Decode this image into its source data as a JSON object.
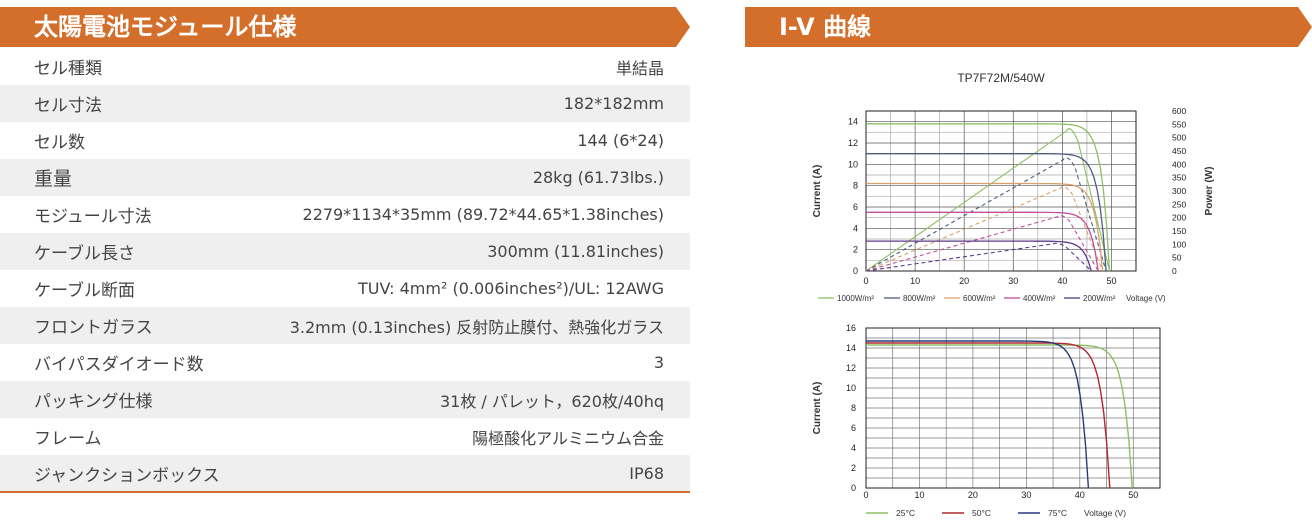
{
  "spec": {
    "title": "太陽電池モジュール仕様",
    "rows": [
      {
        "label": "セル種類",
        "value": "単結晶"
      },
      {
        "label": "セル寸法",
        "value": "182*182mm"
      },
      {
        "label": "セル数",
        "value": "144 (6*24)"
      },
      {
        "label": "重量",
        "value": "28kg (61.73lbs.)"
      },
      {
        "label": "モジュール寸法",
        "value": "2279*1134*35mm (89.72*44.65*1.38inches)"
      },
      {
        "label": "ケーブル長さ",
        "value": "300mm (11.81inches)"
      },
      {
        "label": "ケーブル断面",
        "value": "TUV: 4mm² (0.006inches²)/UL: 12AWG"
      },
      {
        "label": "フロントガラス",
        "value": "3.2mm (0.13inches) 反射防止膜付、熱強化ガラス"
      },
      {
        "label": "バイパスダイオード数",
        "value": "3"
      },
      {
        "label": "パッキング仕様",
        "value": "31枚 / パレット，620枚/40hq"
      },
      {
        "label": "フレーム",
        "value": "陽極酸化アルミニウム合金"
      },
      {
        "label": "ジャンクションボックス",
        "value": "IP68"
      }
    ]
  },
  "iv": {
    "title": "I-V 曲線"
  },
  "colors": {
    "accent": "#d36f2b"
  },
  "chart_data": [
    {
      "type": "line",
      "title": "TP7F72M/540W",
      "ylabel": "Current (A)",
      "y2label": "Power (W)",
      "xlabel": "Voltage (V)",
      "xlim": [
        0,
        55
      ],
      "ylim": [
        0,
        15
      ],
      "y2lim": [
        0,
        600
      ],
      "xticks": [
        0,
        10,
        20,
        30,
        40,
        50
      ],
      "yticks": [
        0,
        2,
        4,
        6,
        8,
        10,
        12,
        14
      ],
      "y2ticks": [
        0,
        50,
        100,
        150,
        200,
        250,
        300,
        350,
        400,
        450,
        500,
        550,
        600
      ],
      "series": [
        {
          "name": "1000W/m²",
          "color": "#8cc063",
          "isc": 13.8,
          "voc": 49.6,
          "pmax": 540,
          "vmp": 41.6
        },
        {
          "name": "800W/m²",
          "color": "#4d5c82",
          "isc": 11.0,
          "voc": 48.9,
          "pmax": 430,
          "vmp": 41.0
        },
        {
          "name": "600W/m²",
          "color": "#d9a06a",
          "isc": 8.2,
          "voc": 48.2,
          "pmax": 320,
          "vmp": 40.4
        },
        {
          "name": "400W/m²",
          "color": "#c04f9c",
          "isc": 5.5,
          "voc": 47.3,
          "pmax": 210,
          "vmp": 39.8
        },
        {
          "name": "200W/m²",
          "color": "#5a3a8c",
          "isc": 2.8,
          "voc": 45.9,
          "pmax": 105,
          "vmp": 38.9
        }
      ]
    },
    {
      "type": "line",
      "ylabel": "Current (A)",
      "xlabel": "Voltage (V)",
      "xlim": [
        0,
        55
      ],
      "ylim": [
        0,
        16
      ],
      "xticks": [
        0,
        10,
        20,
        30,
        40,
        50
      ],
      "yticks": [
        0,
        2,
        4,
        6,
        8,
        10,
        12,
        14,
        16
      ],
      "series": [
        {
          "name": "25°C",
          "color": "#8cc063",
          "isc": 14.3,
          "voc": 49.8
        },
        {
          "name": "50°C",
          "color": "#b0282e",
          "isc": 14.5,
          "voc": 45.6
        },
        {
          "name": "75°C",
          "color": "#2b3a7c",
          "isc": 14.7,
          "voc": 41.6
        }
      ]
    }
  ]
}
